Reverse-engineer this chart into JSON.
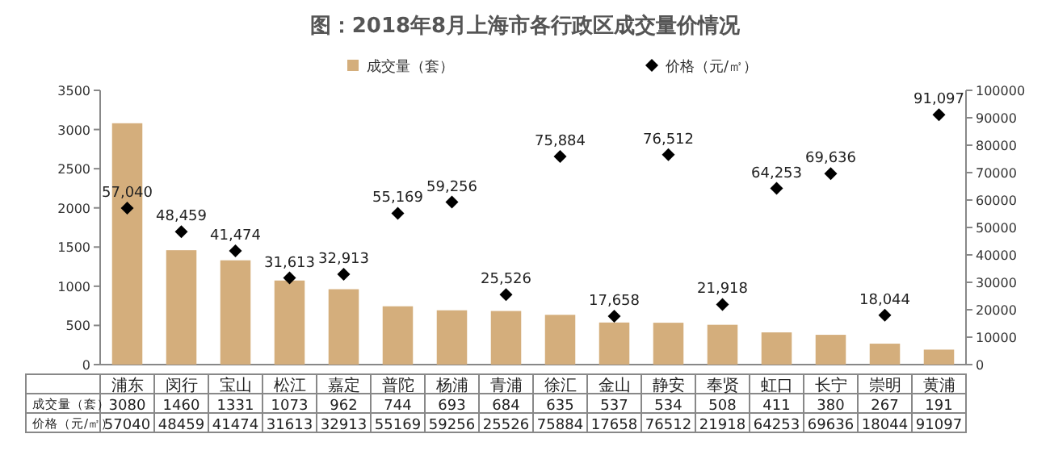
{
  "chart_data": {
    "type": "bar",
    "title": "图：2018年8月上海市各行政区成交量价情况",
    "categories": [
      "浦东",
      "闵行",
      "宝山",
      "松江",
      "嘉定",
      "普陀",
      "杨浦",
      "青浦",
      "徐汇",
      "金山",
      "静安",
      "奉贤",
      "虹口",
      "长宁",
      "崇明",
      "黄浦"
    ],
    "series": [
      {
        "name": "成交量（套）",
        "color": "#d4ae7c",
        "values": [
          3080,
          1460,
          1331,
          1073,
          962,
          744,
          693,
          684,
          635,
          537,
          534,
          508,
          411,
          380,
          267,
          191
        ]
      },
      {
        "name": "价格（元/㎡）",
        "type": "scatter",
        "axis": "y2",
        "marker": "diamond",
        "color": "#000000",
        "values": [
          57040,
          48459,
          41474,
          31613,
          32913,
          55169,
          59256,
          25526,
          75884,
          17658,
          76512,
          21918,
          64253,
          69636,
          18044,
          91097
        ]
      }
    ],
    "annotations": [
      "57,040",
      "48,459",
      "41,474",
      "31,613",
      "32,913",
      "55,169",
      "59,256",
      "25,526",
      "75,884",
      "17,658",
      "76,512",
      "21,918",
      "64,253",
      "69,636",
      "18,044",
      "91,097"
    ],
    "ylim": [
      0,
      3500
    ],
    "yticks": [
      0,
      500,
      1000,
      1500,
      2000,
      2500,
      3000,
      3500
    ],
    "y2lim": [
      0,
      100000
    ],
    "y2ticks": [
      0,
      10000,
      20000,
      30000,
      40000,
      50000,
      60000,
      70000,
      80000,
      90000,
      100000
    ],
    "data_labels": true,
    "legend": "top",
    "grid": false
  }
}
